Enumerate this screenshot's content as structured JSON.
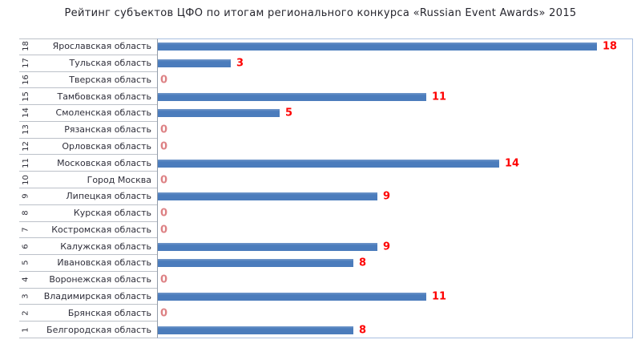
{
  "title": "Рейтинг субъектов ЦФО по итогам регионального конкурса «Russian Event Awards» 2015",
  "chart_data": {
    "type": "bar",
    "orientation": "horizontal",
    "title": "Рейтинг субъектов ЦФО по итогам регионального конкурса «Russian Event Awards» 2015",
    "xlabel": "",
    "ylabel": "",
    "xlim": [
      0,
      19.5
    ],
    "grid": false,
    "legend": false,
    "bar_color": "#4b7cbc",
    "value_label_color": "#fe0000",
    "zero_label_color": "#dd8184",
    "rows": [
      {
        "rank": "18",
        "region": "Ярославская область",
        "value": 18
      },
      {
        "rank": "17",
        "region": "Тульская область",
        "value": 3
      },
      {
        "rank": "16",
        "region": "Тверская область",
        "value": 0
      },
      {
        "rank": "15",
        "region": "Тамбовская область",
        "value": 11
      },
      {
        "rank": "14",
        "region": "Смоленская область",
        "value": 5
      },
      {
        "rank": "13",
        "region": "Рязанская область",
        "value": 0
      },
      {
        "rank": "12",
        "region": "Орловская область",
        "value": 0
      },
      {
        "rank": "11",
        "region": "Московская область",
        "value": 14
      },
      {
        "rank": "10",
        "region": "Город Москва",
        "value": 0
      },
      {
        "rank": "9",
        "region": "Липецкая область",
        "value": 9
      },
      {
        "rank": "8",
        "region": "Курская область",
        "value": 0
      },
      {
        "rank": "7",
        "region": "Костромская область",
        "value": 0
      },
      {
        "rank": "6",
        "region": "Калужская область",
        "value": 9
      },
      {
        "rank": "5",
        "region": "Ивановская область",
        "value": 8
      },
      {
        "rank": "4",
        "region": "Воронежская область",
        "value": 0
      },
      {
        "rank": "3",
        "region": "Владимирская область",
        "value": 11
      },
      {
        "rank": "2",
        "region": "Брянская область",
        "value": 0
      },
      {
        "rank": "1",
        "region": "Белгородская область",
        "value": 8
      }
    ],
    "categories": [
      "Ярославская область",
      "Тульская область",
      "Тверская область",
      "Тамбовская область",
      "Смоленская область",
      "Рязанская область",
      "Орловская область",
      "Московская область",
      "Город Москва",
      "Липецкая область",
      "Курская область",
      "Костромская область",
      "Калужская область",
      "Ивановская область",
      "Воронежская область",
      "Владимирская область",
      "Брянская область",
      "Белгородская область"
    ],
    "values": [
      18,
      3,
      0,
      11,
      5,
      0,
      0,
      14,
      0,
      9,
      0,
      0,
      9,
      8,
      0,
      11,
      0,
      8
    ]
  }
}
